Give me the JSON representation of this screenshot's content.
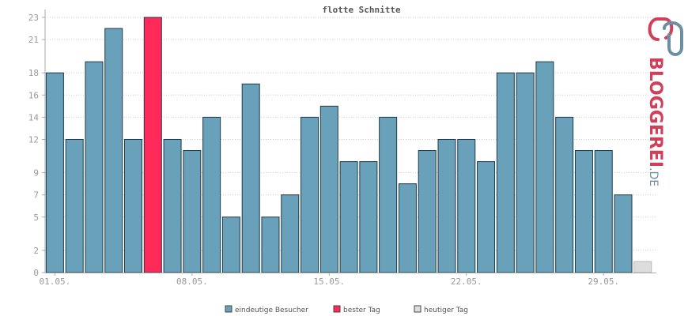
{
  "chart_data": {
    "type": "bar",
    "title": "flotte Schnitte",
    "xlabel": "",
    "ylabel": "",
    "ylim": [
      0,
      23
    ],
    "yticks": [
      0,
      2,
      5,
      7,
      9,
      12,
      14,
      16,
      18,
      21,
      23
    ],
    "x_tick_labels": [
      {
        "label": "01.05.",
        "day": 1
      },
      {
        "label": "08.05.",
        "day": 8
      },
      {
        "label": "15.05.",
        "day": 15
      },
      {
        "label": "22.05.",
        "day": 22
      },
      {
        "label": "29.05.",
        "day": 29
      }
    ],
    "days": [
      1,
      2,
      3,
      4,
      5,
      6,
      7,
      8,
      9,
      10,
      11,
      12,
      13,
      14,
      15,
      16,
      17,
      18,
      19,
      20,
      21,
      22,
      23,
      24,
      25,
      26,
      27,
      28,
      29,
      30
    ],
    "values": [
      18,
      12,
      19,
      22,
      12,
      23,
      12,
      11,
      14,
      5,
      17,
      5,
      7,
      14,
      15,
      10,
      10,
      14,
      8,
      11,
      12,
      12,
      10,
      18,
      18,
      19,
      14,
      11,
      11,
      7
    ],
    "highlight_day": 6,
    "today": {
      "day": 31,
      "value": 1
    },
    "grid": true,
    "legend_position": "bottom",
    "colors": {
      "bar": "#6aa1ba",
      "best": "#ff2a5a",
      "today": "#dddddd",
      "bar_stroke": "#1f3a48",
      "grid": "#cccccc",
      "axis": "#aaaaaa"
    },
    "legend": [
      {
        "label": "eindeutige Besucher",
        "color": "#6aa1ba"
      },
      {
        "label": "bester Tag",
        "color": "#ff2a5a"
      },
      {
        "label": "heutiger Tag",
        "color": "#dddddd"
      }
    ]
  },
  "logo": {
    "text": "BLOGGEREI",
    "suffix": ".DE",
    "color_dark": "#d1405a",
    "color_light": "#6d8fa4"
  }
}
